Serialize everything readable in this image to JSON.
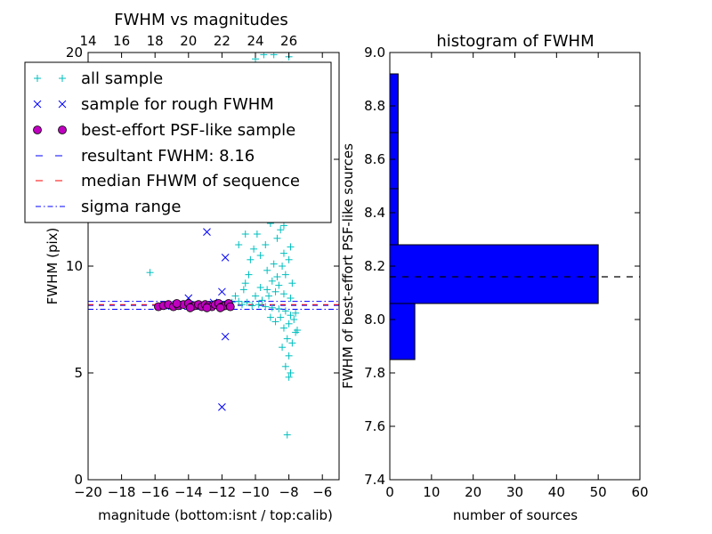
{
  "chart_data": [
    {
      "type": "scatter",
      "title": "FWHM vs magnitudes",
      "xlabel": "magnitude (bottom:isnt / top:calib)",
      "ylabel": "FWHM (pix)",
      "xlim": [
        -20,
        -5
      ],
      "ylim": [
        0,
        20
      ],
      "x_ticks": [
        -20,
        -18,
        -16,
        -14,
        -12,
        -10,
        -8,
        -6
      ],
      "x_tick_labels": [
        "−20",
        "−18",
        "−16",
        "−14",
        "−12",
        "−10",
        "−8",
        "−6"
      ],
      "y_ticks": [
        0,
        5,
        10,
        15,
        20
      ],
      "y_tick_labels": [
        "0",
        "5",
        "10",
        "15",
        "20"
      ],
      "top_axis": {
        "ticks": [
          14,
          16,
          18,
          20,
          22,
          24,
          26
        ],
        "offset_from_bottom": 34
      },
      "legend": {
        "placement": "upper-left",
        "entries": [
          {
            "label": "all sample",
            "marker": "plus",
            "color": "#00bfbf"
          },
          {
            "label": "sample for rough FWHM",
            "marker": "x",
            "color": "#0000ff"
          },
          {
            "label": "best-effort PSF-like sample",
            "marker": "circle",
            "color": "#bf00bf"
          },
          {
            "label": "resultant FWHM: 8.16",
            "marker": "dashed",
            "color": "#0000ff"
          },
          {
            "label": "median FHWM of sequence",
            "marker": "dashed",
            "color": "#ff0000"
          },
          {
            "label": "sigma range",
            "marker": "dashdot",
            "color": "#0000ff"
          }
        ]
      },
      "hlines": [
        {
          "y": 8.16,
          "style": "dashed",
          "color": "#0000ff"
        },
        {
          "y": 8.2,
          "style": "dashed",
          "color": "#ff0000"
        },
        {
          "y": 8.35,
          "style": "dashdot",
          "color": "#0000ff"
        },
        {
          "y": 7.98,
          "style": "dashdot",
          "color": "#0000ff"
        }
      ],
      "series": [
        {
          "name": "all sample",
          "marker": "plus",
          "color": "#00bfbf",
          "points": [
            [
              -16.3,
              9.7
            ],
            [
              -11.0,
              11.0
            ],
            [
              -10.6,
              11.5
            ],
            [
              -10.4,
              12.6
            ],
            [
              -10.0,
              19.7
            ],
            [
              -9.5,
              19.9
            ],
            [
              -8.9,
              19.9
            ],
            [
              -8.0,
              19.8
            ],
            [
              -8.4,
              19.4
            ],
            [
              -9.3,
              18.6
            ],
            [
              -10.2,
              16.5
            ],
            [
              -9.8,
              15.0
            ],
            [
              -9.0,
              14.6
            ],
            [
              -8.6,
              14.9
            ],
            [
              -8.2,
              13.5
            ],
            [
              -8.5,
              13.0
            ],
            [
              -8.8,
              12.3
            ],
            [
              -9.1,
              12.0
            ],
            [
              -9.6,
              12.4
            ],
            [
              -9.9,
              11.5
            ],
            [
              -10.1,
              10.8
            ],
            [
              -9.4,
              11.0
            ],
            [
              -8.7,
              11.3
            ],
            [
              -8.3,
              11.9
            ],
            [
              -7.9,
              10.9
            ],
            [
              -8.0,
              10.3
            ],
            [
              -8.4,
              10.0
            ],
            [
              -8.9,
              10.1
            ],
            [
              -9.3,
              9.8
            ],
            [
              -9.7,
              10.5
            ],
            [
              -10.4,
              9.6
            ],
            [
              -10.7,
              8.9
            ],
            [
              -9.0,
              9.3
            ],
            [
              -8.6,
              9.1
            ],
            [
              -8.2,
              9.6
            ],
            [
              -7.8,
              9.2
            ],
            [
              -7.9,
              8.5
            ],
            [
              -8.3,
              8.7
            ],
            [
              -8.8,
              8.8
            ],
            [
              -9.2,
              8.6
            ],
            [
              -9.6,
              8.4
            ],
            [
              -10.0,
              8.6
            ],
            [
              -10.5,
              8.3
            ],
            [
              -11.0,
              8.35
            ],
            [
              -11.4,
              8.3
            ],
            [
              -10.8,
              8.2
            ],
            [
              -10.2,
              8.15
            ],
            [
              -9.8,
              8.2
            ],
            [
              -9.4,
              8.1
            ],
            [
              -9.0,
              8.05
            ],
            [
              -8.6,
              8.0
            ],
            [
              -8.2,
              7.9
            ],
            [
              -7.9,
              7.7
            ],
            [
              -7.7,
              7.5
            ],
            [
              -8.0,
              7.3
            ],
            [
              -8.3,
              7.1
            ],
            [
              -7.6,
              6.9
            ],
            [
              -8.1,
              6.6
            ],
            [
              -8.4,
              6.2
            ],
            [
              -7.8,
              6.4
            ],
            [
              -8.0,
              5.8
            ],
            [
              -8.2,
              5.3
            ],
            [
              -7.9,
              5.0
            ],
            [
              -8.0,
              4.8
            ],
            [
              -8.1,
              2.1
            ],
            [
              -7.5,
              7.0
            ],
            [
              -7.6,
              7.8
            ],
            [
              -8.5,
              7.6
            ],
            [
              -8.8,
              7.4
            ],
            [
              -9.1,
              7.6
            ],
            [
              -9.3,
              8.9
            ],
            [
              -8.5,
              11.7
            ],
            [
              -8.1,
              12.6
            ],
            [
              -9.2,
              13.2
            ],
            [
              -8.4,
              14.2
            ],
            [
              -8.0,
              15.6
            ],
            [
              -9.0,
              16.3
            ],
            [
              -8.6,
              17.5
            ],
            [
              -9.5,
              13.5
            ],
            [
              -9.9,
              12.8
            ],
            [
              -10.3,
              10.3
            ],
            [
              -10.6,
              9.2
            ],
            [
              -11.2,
              8.6
            ],
            [
              -11.6,
              8.25
            ],
            [
              -9.7,
              9.0
            ],
            [
              -8.7,
              9.5
            ],
            [
              -8.3,
              10.6
            ],
            [
              -8.9,
              12.8
            ],
            [
              -9.4,
              14.1
            ],
            [
              -8.5,
              15.9
            ]
          ]
        },
        {
          "name": "sample for rough FWHM",
          "marker": "x",
          "color": "#0000ff",
          "points": [
            [
              -12.9,
              11.6
            ],
            [
              -11.8,
              10.4
            ],
            [
              -14.0,
              8.5
            ],
            [
              -12.0,
              8.8
            ],
            [
              -11.8,
              6.7
            ],
            [
              -12.0,
              3.4
            ],
            [
              -12.5,
              8.3
            ],
            [
              -13.3,
              8.2
            ],
            [
              -15.1,
              8.15
            ]
          ]
        },
        {
          "name": "best-effort PSF-like sample",
          "marker": "circle",
          "color": "#bf00bf",
          "points": [
            [
              -15.8,
              8.1
            ],
            [
              -15.5,
              8.15
            ],
            [
              -15.2,
              8.2
            ],
            [
              -14.9,
              8.1
            ],
            [
              -14.6,
              8.15
            ],
            [
              -14.3,
              8.2
            ],
            [
              -14.0,
              8.25
            ],
            [
              -13.8,
              8.1
            ],
            [
              -13.6,
              8.15
            ],
            [
              -13.4,
              8.2
            ],
            [
              -13.2,
              8.1
            ],
            [
              -13.0,
              8.2
            ],
            [
              -12.8,
              8.15
            ],
            [
              -12.6,
              8.1
            ],
            [
              -12.4,
              8.2
            ],
            [
              -12.2,
              8.25
            ],
            [
              -12.0,
              8.1
            ],
            [
              -11.8,
              8.15
            ],
            [
              -11.6,
              8.25
            ],
            [
              -11.5,
              8.1
            ],
            [
              -14.7,
              8.25
            ],
            [
              -13.9,
              8.05
            ],
            [
              -12.9,
              8.05
            ],
            [
              -12.1,
              8.05
            ]
          ]
        }
      ]
    },
    {
      "type": "bar",
      "orientation": "horizontal",
      "title": "histogram of FWHM",
      "xlabel": "number of sources",
      "ylabel": "FWHM of best-effort PSF-like sources",
      "xlim": [
        0,
        60
      ],
      "ylim": [
        7.4,
        9.0
      ],
      "x_ticks": [
        0,
        10,
        20,
        30,
        40,
        50,
        60
      ],
      "x_tick_labels": [
        "0",
        "10",
        "20",
        "30",
        "40",
        "50",
        "60"
      ],
      "y_ticks": [
        7.4,
        7.6,
        7.8,
        8.0,
        8.2,
        8.4,
        8.6,
        8.8,
        9.0
      ],
      "y_tick_labels": [
        "7.4",
        "7.6",
        "7.8",
        "8.0",
        "8.2",
        "8.4",
        "8.6",
        "8.8",
        "9.0"
      ],
      "color": "#0000ff",
      "bins": [
        {
          "low": 7.85,
          "high": 8.06,
          "count": 6
        },
        {
          "low": 8.06,
          "high": 8.28,
          "count": 50
        },
        {
          "low": 8.28,
          "high": 8.49,
          "count": 2
        },
        {
          "low": 8.49,
          "high": 8.7,
          "count": 2
        },
        {
          "low": 8.7,
          "high": 8.92,
          "count": 2
        }
      ],
      "hline": {
        "y": 8.16,
        "style": "dashed",
        "color": "#000000"
      }
    }
  ]
}
